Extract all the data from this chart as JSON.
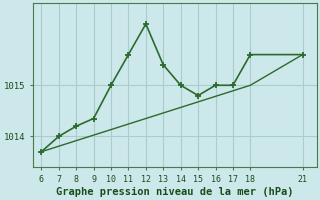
{
  "line1_x": [
    6,
    7,
    8,
    9,
    10,
    11,
    12,
    13,
    14,
    15,
    16,
    17,
    18,
    21
  ],
  "line1_y": [
    1013.7,
    1014.0,
    1014.2,
    1014.35,
    1015.0,
    1015.6,
    1016.2,
    1015.4,
    1015.0,
    1014.8,
    1015.0,
    1015.0,
    1015.6,
    1015.6
  ],
  "line2_x": [
    6,
    18,
    21
  ],
  "line2_y": [
    1013.7,
    1015.0,
    1015.6
  ],
  "line_color": "#2d6a2d",
  "bg_color": "#cce8ea",
  "grid_color": "#aacccc",
  "xlabel": "Graphe pression niveau de la mer (hPa)",
  "xticks": [
    6,
    7,
    8,
    9,
    10,
    11,
    12,
    13,
    14,
    15,
    16,
    17,
    18,
    21
  ],
  "yticks": [
    1014,
    1015
  ],
  "ylim": [
    1013.4,
    1016.6
  ],
  "xlim": [
    5.5,
    21.8
  ],
  "xlabel_color": "#1a4d1a",
  "xlabel_fontsize": 7.5
}
